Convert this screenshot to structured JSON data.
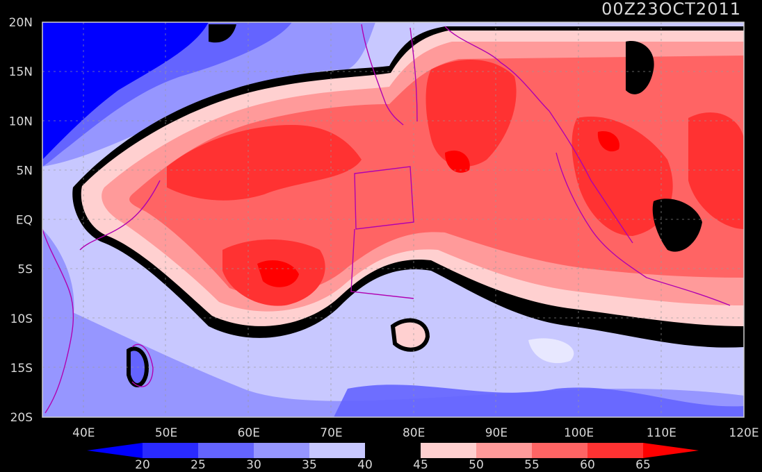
{
  "title": "00Z23OCT2011",
  "map": {
    "region": "Indian Ocean / Maritime Continent",
    "lon_range": [
      35,
      120
    ],
    "lat_range": [
      -20,
      20
    ],
    "lat_ticks": [
      {
        "value": 20,
        "label": "20N"
      },
      {
        "value": 15,
        "label": "15N"
      },
      {
        "value": 10,
        "label": "10N"
      },
      {
        "value": 5,
        "label": "5N"
      },
      {
        "value": 0,
        "label": "EQ"
      },
      {
        "value": -5,
        "label": "5S"
      },
      {
        "value": -10,
        "label": "10S"
      },
      {
        "value": -15,
        "label": "15S"
      },
      {
        "value": -20,
        "label": "20S"
      }
    ],
    "lon_ticks": [
      {
        "value": 40,
        "label": "40E"
      },
      {
        "value": 50,
        "label": "50E"
      },
      {
        "value": 60,
        "label": "60E"
      },
      {
        "value": 70,
        "label": "70E"
      },
      {
        "value": 80,
        "label": "80E"
      },
      {
        "value": 90,
        "label": "90E"
      },
      {
        "value": 100,
        "label": "100E"
      },
      {
        "value": 110,
        "label": "110E"
      },
      {
        "value": 120,
        "label": "120E"
      }
    ],
    "grid": true,
    "coastline_color": "#b000b0"
  },
  "colorbar": {
    "labels": [
      "20",
      "25",
      "30",
      "35",
      "40",
      "45",
      "50",
      "55",
      "60",
      "65"
    ],
    "colors": [
      "#0000ff",
      "#2a2aff",
      "#6464ff",
      "#9696ff",
      "#c8c8ff",
      "#000000",
      "#ffd0d0",
      "#ff9a9a",
      "#ff6464",
      "#ff3232",
      "#ff0000"
    ]
  }
}
